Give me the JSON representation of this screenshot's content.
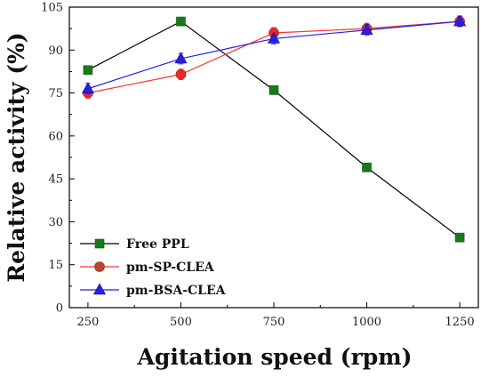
{
  "chart_data": {
    "type": "line",
    "xlabel": "Agitation speed (rpm)",
    "ylabel": "Relative activity (%)",
    "x": [
      250,
      500,
      750,
      1000,
      1250
    ],
    "x_ticks": [
      "250",
      "500",
      "750",
      "1000",
      "1250"
    ],
    "y_ticks": [
      "0",
      "15",
      "30",
      "45",
      "60",
      "75",
      "90",
      "105"
    ],
    "xlim": [
      200,
      1300
    ],
    "ylim": [
      0,
      105
    ],
    "grid": false,
    "legend_position": "bottom-left",
    "series": [
      {
        "name": "Free PPL",
        "values": [
          83,
          100,
          76,
          49,
          24.5
        ],
        "line_color": "#000000",
        "marker": "square",
        "marker_color": "#1a7a1a"
      },
      {
        "name": "pm-SP-CLEA",
        "values": [
          75,
          81.5,
          96,
          97.5,
          100
        ],
        "line_color": "#ff3030",
        "marker": "circle",
        "marker_color": "#ee2828",
        "legend_marker_color": "#b5482c"
      },
      {
        "name": "pm-BSA-CLEA",
        "values": [
          76.5,
          87,
          94,
          97,
          100
        ],
        "line_color": "#2020ee",
        "marker": "triangle",
        "marker_color": "#2a1ee0"
      }
    ]
  }
}
